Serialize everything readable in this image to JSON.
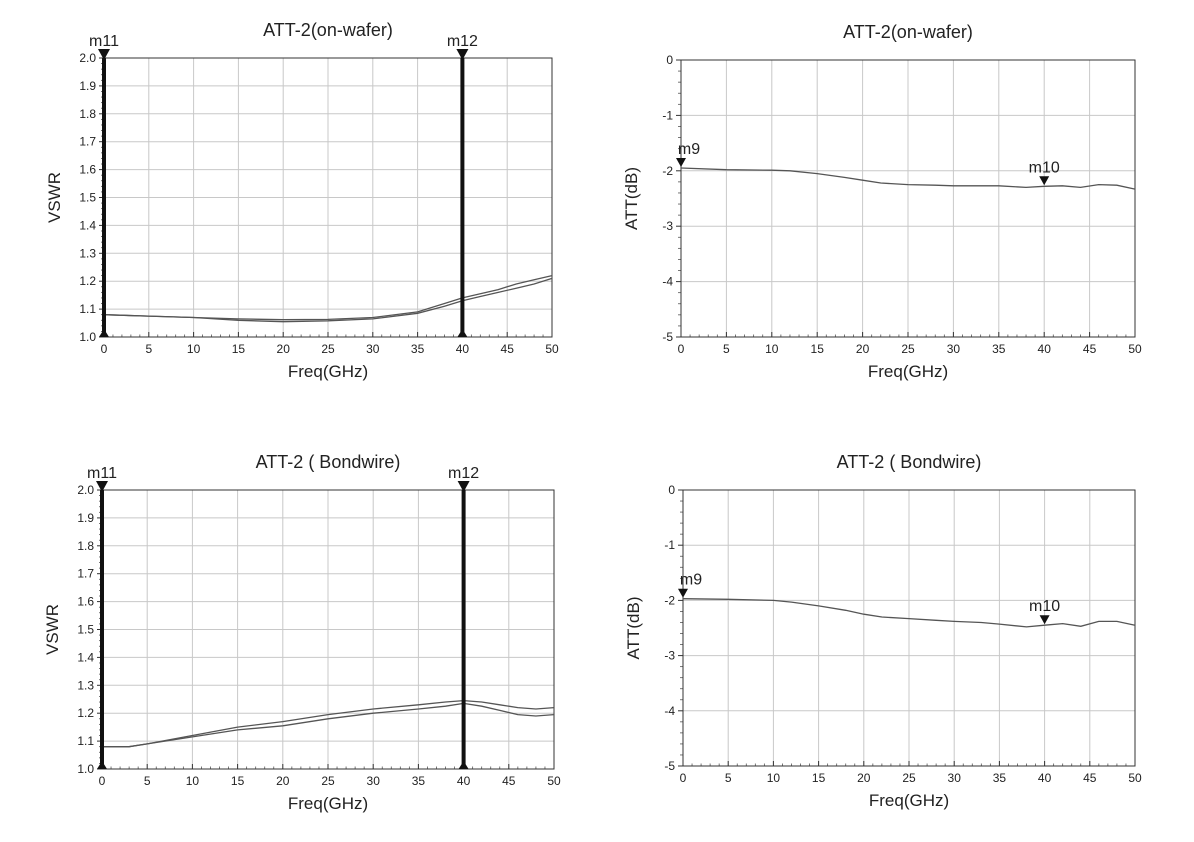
{
  "chart_data": [
    {
      "type": "line",
      "title": "ATT-2(on-wafer)",
      "xlabel": "Freq(GHz)",
      "ylabel": "VSWR",
      "xlim": [
        0,
        50
      ],
      "ylim": [
        1.0,
        2.0
      ],
      "xticks": [
        0,
        5,
        10,
        15,
        20,
        25,
        30,
        35,
        40,
        45,
        50
      ],
      "yticks": [
        1.0,
        1.1,
        1.2,
        1.3,
        1.4,
        1.5,
        1.6,
        1.7,
        1.8,
        1.9,
        2.0
      ],
      "ytick_decimals": 1,
      "grid": true,
      "series": [
        {
          "x": [
            0,
            5,
            10,
            15,
            20,
            25,
            30,
            35,
            38,
            40,
            42,
            44,
            46,
            48,
            50
          ],
          "values": [
            1.08,
            1.075,
            1.07,
            1.065,
            1.062,
            1.063,
            1.07,
            1.09,
            1.12,
            1.14,
            1.155,
            1.17,
            1.19,
            1.205,
            1.22
          ]
        },
        {
          "x": [
            0,
            5,
            10,
            15,
            20,
            25,
            30,
            35,
            38,
            40,
            42,
            44,
            46,
            48,
            50
          ],
          "values": [
            1.08,
            1.075,
            1.07,
            1.06,
            1.055,
            1.058,
            1.065,
            1.085,
            1.11,
            1.13,
            1.145,
            1.16,
            1.175,
            1.19,
            1.21
          ]
        }
      ],
      "markers": [
        {
          "label": "m11",
          "x": 0,
          "style": "vline"
        },
        {
          "label": "m12",
          "x": 40,
          "style": "vline"
        }
      ]
    },
    {
      "type": "line",
      "title": "ATT-2(on-wafer)",
      "xlabel": "Freq(GHz)",
      "ylabel": "ATT(dB)",
      "xlim": [
        0,
        50
      ],
      "ylim": [
        -5,
        0
      ],
      "xticks": [
        0,
        5,
        10,
        15,
        20,
        25,
        30,
        35,
        40,
        45,
        50
      ],
      "yticks": [
        -5,
        -4,
        -3,
        -2,
        -1,
        0
      ],
      "ytick_decimals": 0,
      "grid": true,
      "series": [
        {
          "x": [
            0,
            5,
            10,
            12,
            15,
            18,
            20,
            22,
            25,
            28,
            30,
            35,
            38,
            40,
            42,
            44,
            46,
            48,
            50
          ],
          "values": [
            -1.95,
            -1.98,
            -1.99,
            -2.0,
            -2.05,
            -2.12,
            -2.17,
            -2.22,
            -2.25,
            -2.26,
            -2.27,
            -2.27,
            -2.3,
            -2.28,
            -2.27,
            -2.3,
            -2.25,
            -2.26,
            -2.33
          ]
        }
      ],
      "markers": [
        {
          "label": "m9",
          "x": 0,
          "y": -1.95,
          "style": "point"
        },
        {
          "label": "m10",
          "x": 40,
          "y": -2.28,
          "style": "point"
        }
      ]
    },
    {
      "type": "line",
      "title": "ATT-2 ( Bondwire)",
      "xlabel": "Freq(GHz)",
      "ylabel": "VSWR",
      "xlim": [
        0,
        50
      ],
      "ylim": [
        1.0,
        2.0
      ],
      "xticks": [
        0,
        5,
        10,
        15,
        20,
        25,
        30,
        35,
        40,
        45,
        50
      ],
      "yticks": [
        1.0,
        1.1,
        1.2,
        1.3,
        1.4,
        1.5,
        1.6,
        1.7,
        1.8,
        1.9,
        2.0
      ],
      "ytick_decimals": 1,
      "grid": true,
      "series": [
        {
          "x": [
            0,
            3,
            5,
            10,
            15,
            20,
            25,
            30,
            35,
            38,
            40,
            42,
            44,
            46,
            48,
            50
          ],
          "values": [
            1.08,
            1.08,
            1.09,
            1.12,
            1.15,
            1.17,
            1.195,
            1.215,
            1.23,
            1.24,
            1.245,
            1.24,
            1.23,
            1.22,
            1.215,
            1.22
          ]
        },
        {
          "x": [
            0,
            3,
            5,
            10,
            15,
            20,
            25,
            30,
            35,
            38,
            40,
            42,
            44,
            46,
            48,
            50
          ],
          "values": [
            1.08,
            1.08,
            1.09,
            1.115,
            1.14,
            1.155,
            1.18,
            1.2,
            1.215,
            1.225,
            1.235,
            1.225,
            1.21,
            1.195,
            1.19,
            1.195
          ]
        }
      ],
      "markers": [
        {
          "label": "m11",
          "x": 0,
          "style": "vline"
        },
        {
          "label": "m12",
          "x": 40,
          "style": "vline"
        }
      ]
    },
    {
      "type": "line",
      "title": "ATT-2 ( Bondwire)",
      "xlabel": "Freq(GHz)",
      "ylabel": "ATT(dB)",
      "xlim": [
        0,
        50
      ],
      "ylim": [
        -5,
        0
      ],
      "xticks": [
        0,
        5,
        10,
        15,
        20,
        25,
        30,
        35,
        40,
        45,
        50
      ],
      "yticks": [
        -5,
        -4,
        -3,
        -2,
        -1,
        0
      ],
      "ytick_decimals": 0,
      "grid": true,
      "series": [
        {
          "x": [
            0,
            5,
            10,
            12,
            15,
            18,
            20,
            22,
            25,
            28,
            30,
            33,
            35,
            38,
            40,
            42,
            44,
            46,
            48,
            50
          ],
          "values": [
            -1.97,
            -1.98,
            -2.0,
            -2.03,
            -2.1,
            -2.18,
            -2.25,
            -2.3,
            -2.33,
            -2.36,
            -2.38,
            -2.4,
            -2.43,
            -2.48,
            -2.45,
            -2.42,
            -2.47,
            -2.38,
            -2.38,
            -2.45
          ]
        }
      ],
      "markers": [
        {
          "label": "m9",
          "x": 0,
          "y": -1.97,
          "style": "point"
        },
        {
          "label": "m10",
          "x": 40,
          "y": -2.45,
          "style": "point"
        }
      ]
    }
  ]
}
